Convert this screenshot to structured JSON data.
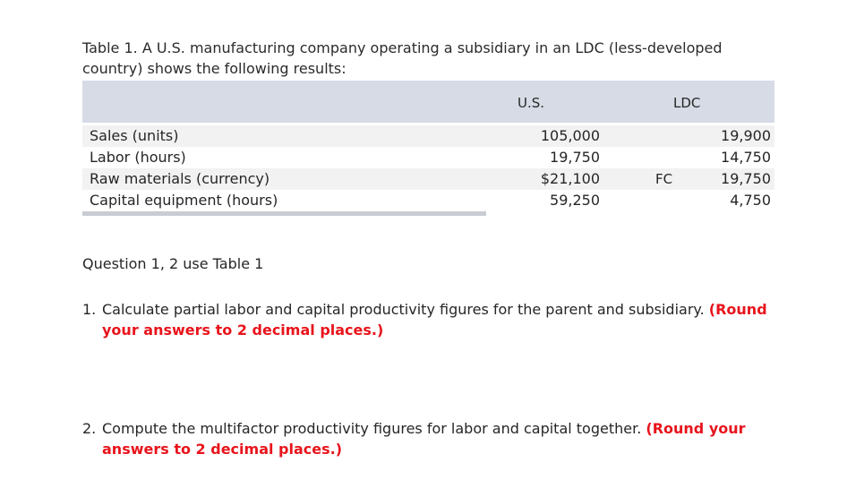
{
  "caption": "Table 1. A U.S. manufacturing company operating a subsidiary in an LDC (less-developed country) shows the following results:",
  "table": {
    "headers": {
      "us": "U.S.",
      "ldc": "LDC"
    },
    "rows": [
      {
        "label": "Sales (units)",
        "us": "105,000",
        "fc": "",
        "ldc": "19,900"
      },
      {
        "label": "Labor (hours)",
        "us": "19,750",
        "fc": "",
        "ldc": "14,750"
      },
      {
        "label": "Raw materials (currency)",
        "us": "$21,100",
        "fc": "FC",
        "ldc": "19,750"
      },
      {
        "label": "Capital equipment (hours)",
        "us": "59,250",
        "fc": "",
        "ldc": "4,750"
      }
    ]
  },
  "questions_intro": "Question 1, 2 use Table 1",
  "questions": [
    {
      "number": "1.",
      "text": "Calculate partial labor and capital productivity figures for the parent and subsidiary.",
      "note": "(Round your answers to 2 decimal places.)"
    },
    {
      "number": "2.",
      "text": "Compute the multifactor productivity figures for labor and capital together.",
      "note": "(Round your answers to 2 decimal places.)"
    }
  ],
  "colors": {
    "header_band": "#d6dbe6",
    "alt_row": "#f2f2f2",
    "accent_red": "#e8141c"
  }
}
